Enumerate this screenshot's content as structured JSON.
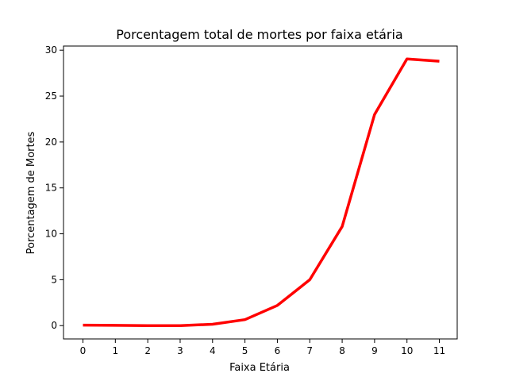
{
  "chart_data": {
    "type": "line",
    "title": "Porcentagem total de mortes por faixa etária",
    "xlabel": "Faixa Etária",
    "ylabel": "Porcentagem de Mortes",
    "x": [
      0,
      1,
      2,
      3,
      4,
      5,
      6,
      7,
      8,
      9,
      10,
      11
    ],
    "xticks": [
      "0",
      "1",
      "2",
      "3",
      "4",
      "5",
      "6",
      "7",
      "8",
      "9",
      "10",
      "11"
    ],
    "yticks": [
      "0",
      "5",
      "10",
      "15",
      "20",
      "25",
      "30"
    ],
    "xlim": [
      -0.6,
      11.55
    ],
    "ylim": [
      -1.45,
      30.45
    ],
    "grid": false,
    "series": [
      {
        "color": "#ff0000",
        "values": [
          0.05,
          0.03,
          0.0,
          0.0,
          0.15,
          0.65,
          2.2,
          5.0,
          10.8,
          23.0,
          29.05,
          28.8
        ]
      }
    ]
  }
}
